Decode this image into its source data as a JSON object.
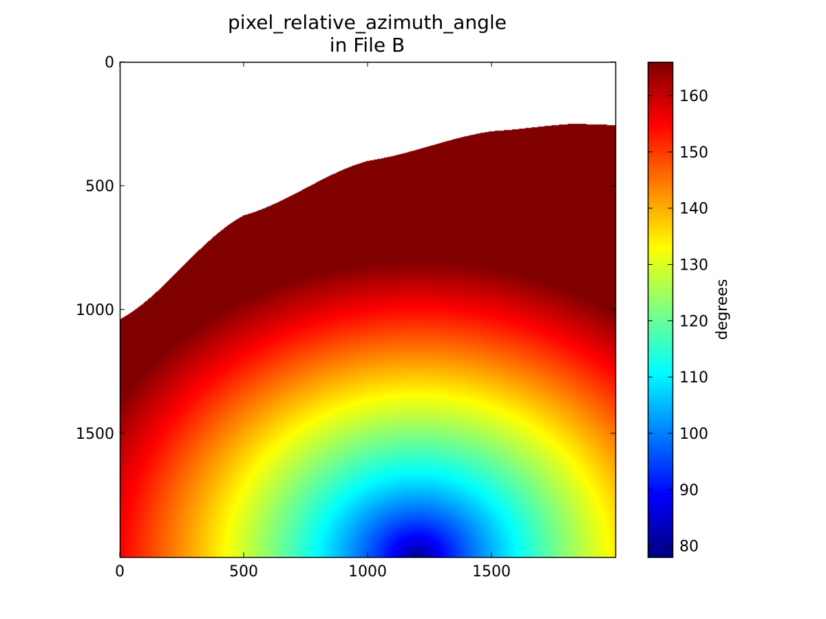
{
  "chart_data": {
    "type": "heatmap",
    "title": "pixel_relative_azimuth_angle",
    "subtitle": "in File B",
    "colormap": "jet",
    "image_extent": {
      "x": [
        0,
        2000
      ],
      "y": [
        0,
        2000
      ]
    },
    "y_axis_inverted": true,
    "x_ticks": [
      0,
      500,
      1000,
      1500
    ],
    "y_ticks": [
      0,
      500,
      1000,
      1500
    ],
    "x_tick_labels": [
      "0",
      "500",
      "1000",
      "1500"
    ],
    "y_tick_labels": [
      "0",
      "500",
      "1000",
      "1500"
    ],
    "data_region": {
      "shape": "arc-bounded",
      "boundary_points": [
        [
          0,
          1040
        ],
        [
          500,
          620
        ],
        [
          1000,
          400
        ],
        [
          1500,
          280
        ],
        [
          1830,
          250
        ],
        [
          2000,
          255
        ]
      ],
      "outside_value": "no data (white)"
    },
    "field_model": {
      "description": "angle increases with distance from the minimum point",
      "min_point": [
        1200,
        2000
      ],
      "min_value": 78,
      "max_value": 166
    },
    "colorbar": {
      "label": "degrees",
      "min": 78,
      "max": 166,
      "ticks": [
        80,
        90,
        100,
        110,
        120,
        130,
        140,
        150,
        160
      ],
      "tick_labels": [
        "80",
        "90",
        "100",
        "110",
        "120",
        "130",
        "140",
        "150",
        "160"
      ]
    }
  }
}
